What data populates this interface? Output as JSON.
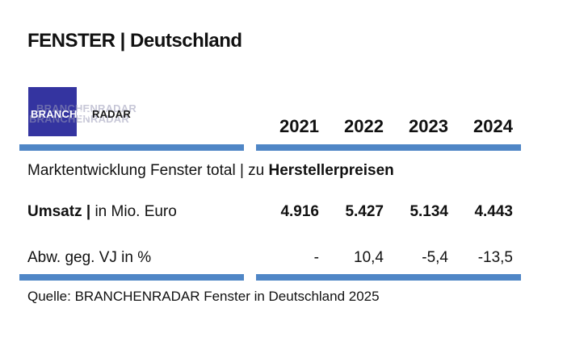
{
  "page": {
    "title": "FENSTER | Deutschland",
    "source": "Quelle: BRANCHENRADAR Fenster in Deutschland 2025"
  },
  "logo": {
    "text_primary": "BRANCHEN",
    "text_secondary": "RADAR",
    "ghost_text": "BRANCHENRADAR"
  },
  "table": {
    "years": [
      "2021",
      "2022",
      "2023",
      "2024"
    ],
    "subtitle_regular": "Marktentwicklung Fenster total | zu ",
    "subtitle_bold": "Herstellerpreisen",
    "rows": [
      {
        "label_bold": "Umsatz | ",
        "label_regular": "in Mio. Euro",
        "values": [
          "4.916",
          "5.427",
          "5.134",
          "4.443"
        ]
      },
      {
        "label_bold": "",
        "label_regular": "Abw. geg. VJ in %",
        "values": [
          "-",
          "10,4",
          "-5,4",
          "-13,5"
        ]
      }
    ]
  },
  "colors": {
    "accent_line": "#4F86C6",
    "logo_blue": "#3434A0",
    "text": "#111111"
  },
  "chart_data": {
    "type": "table",
    "title": "FENSTER | Deutschland",
    "subtitle": "Marktentwicklung Fenster total | zu Herstellerpreisen",
    "columns": [
      "2021",
      "2022",
      "2023",
      "2024"
    ],
    "rows": [
      {
        "label": "Umsatz | in Mio. Euro",
        "values": [
          4916,
          5427,
          5134,
          4443
        ]
      },
      {
        "label": "Abw. geg. VJ in %",
        "values": [
          null,
          10.4,
          -5.4,
          -13.5
        ]
      }
    ],
    "source": "Quelle: BRANCHENRADAR Fenster in Deutschland 2025"
  }
}
